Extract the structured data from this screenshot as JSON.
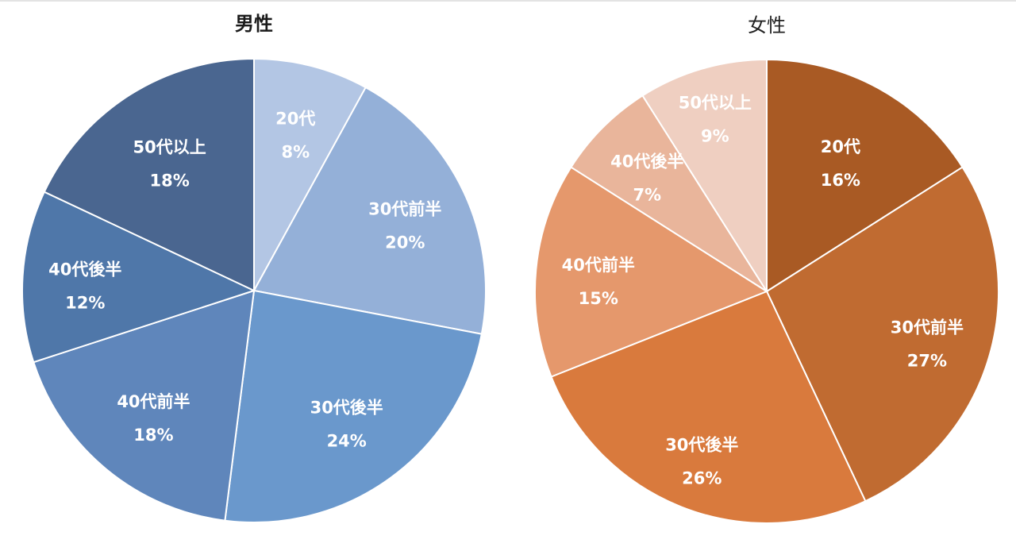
{
  "chart_data": [
    {
      "type": "pie",
      "title": "男性",
      "categories": [
        "20代",
        "30代前半",
        "30代後半",
        "40代前半",
        "40代後半",
        "50代以上"
      ],
      "values": [
        8,
        20,
        24,
        18,
        12,
        18
      ],
      "value_labels": [
        "8%",
        "20%",
        "24%",
        "18%",
        "12%",
        "18%"
      ],
      "colors": [
        "#b3c6e4",
        "#94b0d8",
        "#6a98cc",
        "#5f86bb",
        "#4f77a9",
        "#4a6690"
      ],
      "start": "12 o'clock",
      "direction": "clockwise"
    },
    {
      "type": "pie",
      "title": "女性",
      "categories": [
        "20代",
        "30代前半",
        "30代後半",
        "40代前半",
        "40代後半",
        "50代以上"
      ],
      "values": [
        16,
        27,
        26,
        15,
        7,
        9
      ],
      "value_labels": [
        "16%",
        "27%",
        "26%",
        "15%",
        "7%",
        "9%"
      ],
      "colors": [
        "#a95a24",
        "#c06b31",
        "#d97a3d",
        "#e5986c",
        "#e9b59b",
        "#efcfc1"
      ],
      "start": "12 o'clock",
      "direction": "clockwise"
    }
  ]
}
